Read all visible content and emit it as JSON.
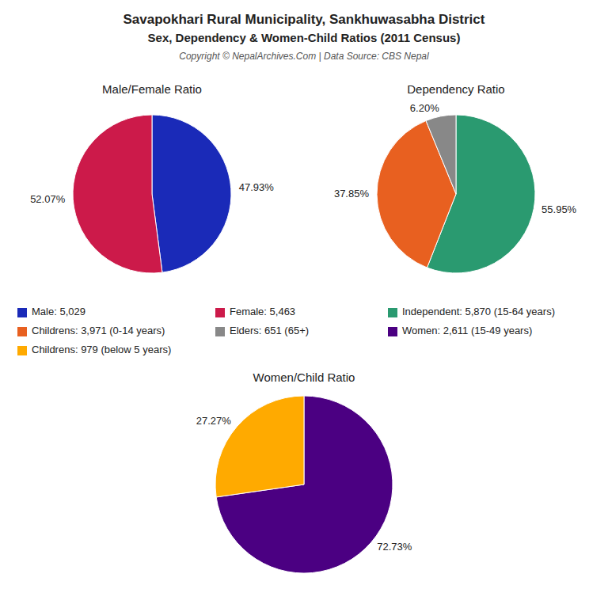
{
  "title": "Savapokhari Rural Municipality, Sankhuwasabha District",
  "subtitle": "Sex, Dependency & Women-Child Ratios (2011 Census)",
  "annotations": [
    "Copyright © NepalArchives.Com | Data Source: CBS Nepal"
  ],
  "chart_data": [
    {
      "type": "pie",
      "title": "Male/Female Ratio",
      "categories": [
        "Male: 5,029",
        "Female: 5,463"
      ],
      "values": [
        47.93,
        52.07
      ],
      "value_labels": [
        "47.93%",
        "52.07%"
      ],
      "colors": [
        "#1a2ab8",
        "#cc1a4a"
      ],
      "data_labels": true,
      "legend": "bottom"
    },
    {
      "type": "pie",
      "title": "Dependency Ratio",
      "categories": [
        "Independent: 5,870 (15-64 years)",
        "Childrens: 3,971 (0-14 years)",
        "Elders: 651 (65+)"
      ],
      "values": [
        55.95,
        37.85,
        6.2
      ],
      "value_labels": [
        "55.95%",
        "37.85%",
        "6.20%"
      ],
      "colors": [
        "#2a9a70",
        "#e86020",
        "#888888"
      ],
      "data_labels": true,
      "legend": "bottom"
    },
    {
      "type": "pie",
      "title": "Women/Child Ratio",
      "categories": [
        "Women: 2,611 (15-49 years)",
        "Childrens: 979 (below 5 years)"
      ],
      "values": [
        72.73,
        27.27
      ],
      "value_labels": [
        "72.73%",
        "27.27%"
      ],
      "colors": [
        "#4b0082",
        "#ffaa00"
      ],
      "data_labels": true,
      "legend": "bottom"
    }
  ]
}
